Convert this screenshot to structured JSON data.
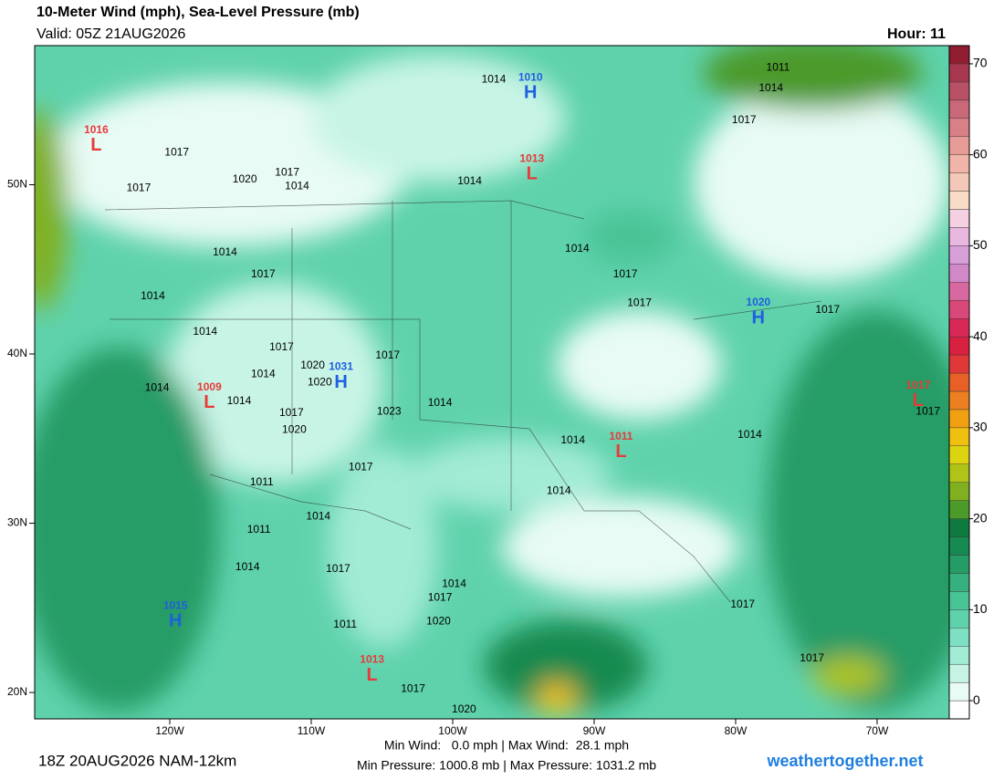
{
  "header": {
    "title": "10-Meter Wind (mph), Sea-Level Pressure (mb)",
    "valid": "Valid: 05Z 21AUG2026",
    "hour": "Hour: 11"
  },
  "map": {
    "xlim": [
      -129.55,
      -64.9
    ],
    "ylim": [
      18.44,
      58.22
    ],
    "xticks": [
      {
        "value": -120,
        "label": "120W"
      },
      {
        "value": -110,
        "label": "110W"
      },
      {
        "value": -100,
        "label": "100W"
      },
      {
        "value": -90,
        "label": "90W"
      },
      {
        "value": -80,
        "label": "80W"
      },
      {
        "value": -70,
        "label": "70W"
      }
    ],
    "yticks": [
      {
        "value": 50,
        "label": "50N"
      },
      {
        "value": 40,
        "label": "40N"
      },
      {
        "value": 30,
        "label": "30N"
      },
      {
        "value": 20,
        "label": "20N"
      }
    ],
    "centers": [
      {
        "kind": "L",
        "value": 1016,
        "lon": -125.2,
        "lat": 52.3,
        "color": "#e83a3a"
      },
      {
        "kind": "H",
        "value": 1010,
        "lon": -94.5,
        "lat": 55.4,
        "color": "#1f5fe0"
      },
      {
        "kind": "L",
        "value": 1013,
        "lon": -94.4,
        "lat": 50.6,
        "color": "#e83a3a"
      },
      {
        "kind": "H",
        "value": 1020,
        "lon": -78.4,
        "lat": 42.1,
        "color": "#1f5fe0"
      },
      {
        "kind": "L",
        "value": 1009,
        "lon": -117.2,
        "lat": 37.1,
        "color": "#e83a3a"
      },
      {
        "kind": "H",
        "value": 1031,
        "lon": -107.9,
        "lat": 38.3,
        "color": "#1f5fe0"
      },
      {
        "kind": "L",
        "value": 1011,
        "lon": -88.1,
        "lat": 34.2,
        "color": "#e83a3a"
      },
      {
        "kind": "L",
        "value": 1017,
        "lon": -67.1,
        "lat": 37.2,
        "color": "#e83a3a"
      },
      {
        "kind": "H",
        "value": 1015,
        "lon": -119.6,
        "lat": 24.2,
        "color": "#1f5fe0"
      },
      {
        "kind": "L",
        "value": 1013,
        "lon": -105.7,
        "lat": 21.0,
        "color": "#e83a3a"
      }
    ],
    "isobar_labels": [
      {
        "text": 1014,
        "lon": -97.1,
        "lat": 56.2
      },
      {
        "text": 1011,
        "lon": -77.0,
        "lat": 56.9
      },
      {
        "text": 1014,
        "lon": -77.5,
        "lat": 55.7
      },
      {
        "text": 1017,
        "lon": -79.4,
        "lat": 53.8
      },
      {
        "text": 1017,
        "lon": -119.5,
        "lat": 51.9
      },
      {
        "text": 1017,
        "lon": -122.2,
        "lat": 49.8
      },
      {
        "text": 1020,
        "lon": -114.7,
        "lat": 50.3
      },
      {
        "text": 1017,
        "lon": -111.7,
        "lat": 50.7
      },
      {
        "text": 1014,
        "lon": -111.0,
        "lat": 49.9
      },
      {
        "text": 1014,
        "lon": -98.8,
        "lat": 50.2
      },
      {
        "text": 1014,
        "lon": -116.1,
        "lat": 46.0
      },
      {
        "text": 1017,
        "lon": -113.4,
        "lat": 44.7
      },
      {
        "text": 1014,
        "lon": -121.2,
        "lat": 43.4
      },
      {
        "text": 1014,
        "lon": -91.2,
        "lat": 46.2
      },
      {
        "text": 1017,
        "lon": -87.8,
        "lat": 44.7
      },
      {
        "text": 1017,
        "lon": -86.8,
        "lat": 43.0
      },
      {
        "text": 1017,
        "lon": -73.5,
        "lat": 42.6
      },
      {
        "text": 1014,
        "lon": -117.5,
        "lat": 41.3
      },
      {
        "text": 1017,
        "lon": -112.1,
        "lat": 40.4
      },
      {
        "text": 1014,
        "lon": -113.4,
        "lat": 38.8
      },
      {
        "text": 1020,
        "lon": -109.9,
        "lat": 39.3
      },
      {
        "text": 1020,
        "lon": -109.4,
        "lat": 38.3
      },
      {
        "text": 1017,
        "lon": -104.6,
        "lat": 39.9
      },
      {
        "text": 1014,
        "lon": -120.9,
        "lat": 38.0
      },
      {
        "text": 1014,
        "lon": -115.1,
        "lat": 37.2
      },
      {
        "text": 1017,
        "lon": -111.4,
        "lat": 36.5
      },
      {
        "text": 1023,
        "lon": -104.5,
        "lat": 36.6
      },
      {
        "text": 1014,
        "lon": -100.9,
        "lat": 37.1
      },
      {
        "text": 1020,
        "lon": -111.2,
        "lat": 35.5
      },
      {
        "text": 1017,
        "lon": -106.5,
        "lat": 33.3
      },
      {
        "text": 1011,
        "lon": -113.5,
        "lat": 32.4
      },
      {
        "text": 1014,
        "lon": -91.5,
        "lat": 34.9
      },
      {
        "text": 1014,
        "lon": -79.0,
        "lat": 35.2
      },
      {
        "text": 1017,
        "lon": -66.4,
        "lat": 36.6
      },
      {
        "text": 1014,
        "lon": -92.5,
        "lat": 31.9
      },
      {
        "text": 1014,
        "lon": -109.5,
        "lat": 30.4
      },
      {
        "text": 1011,
        "lon": -113.7,
        "lat": 29.6
      },
      {
        "text": 1014,
        "lon": -114.5,
        "lat": 27.4
      },
      {
        "text": 1017,
        "lon": -108.1,
        "lat": 27.3
      },
      {
        "text": 1014,
        "lon": -99.9,
        "lat": 26.4
      },
      {
        "text": 1017,
        "lon": -100.9,
        "lat": 25.6
      },
      {
        "text": 1020,
        "lon": -101.0,
        "lat": 24.2
      },
      {
        "text": 1011,
        "lon": -107.6,
        "lat": 24.0
      },
      {
        "text": 1017,
        "lon": -79.5,
        "lat": 25.2
      },
      {
        "text": 1017,
        "lon": -74.6,
        "lat": 22.0
      },
      {
        "text": 1017,
        "lon": -102.8,
        "lat": 20.2
      },
      {
        "text": 1020,
        "lon": -99.2,
        "lat": 19.0
      }
    ]
  },
  "colorbar": {
    "lim": [
      -2,
      72
    ],
    "step": 2,
    "ticks": [
      0,
      10,
      20,
      30,
      40,
      50,
      60,
      70
    ],
    "colors": [
      "#ffffff",
      "#e8fbf5",
      "#c8f4e6",
      "#a2ebd5",
      "#7ee0c2",
      "#5fd2ac",
      "#48c496",
      "#36b07e",
      "#259c66",
      "#168a50",
      "#0f7a40",
      "#4c9a2a",
      "#80b020",
      "#b0c418",
      "#dcd410",
      "#f0c010",
      "#f0a010",
      "#ec8020",
      "#e86028",
      "#e03838",
      "#d82040",
      "#d82858",
      "#d84878",
      "#d868a0",
      "#d088c8",
      "#d8a0d8",
      "#e8b8e0",
      "#f4d0e0",
      "#f8dcc8",
      "#f4c8b8",
      "#f0b4a8",
      "#e89c98",
      "#d88088",
      "#c86878",
      "#b85066",
      "#a83850",
      "#901c30"
    ]
  },
  "footer": {
    "run": "18Z 20AUG2026 NAM-12km",
    "wind": "Min Wind:   0.0 mph | Max Wind:  28.1 mph",
    "pressure": "Min Pressure: 1000.8 mb | Max Pressure: 1031.2 mb",
    "site": "weathertogether.net"
  }
}
